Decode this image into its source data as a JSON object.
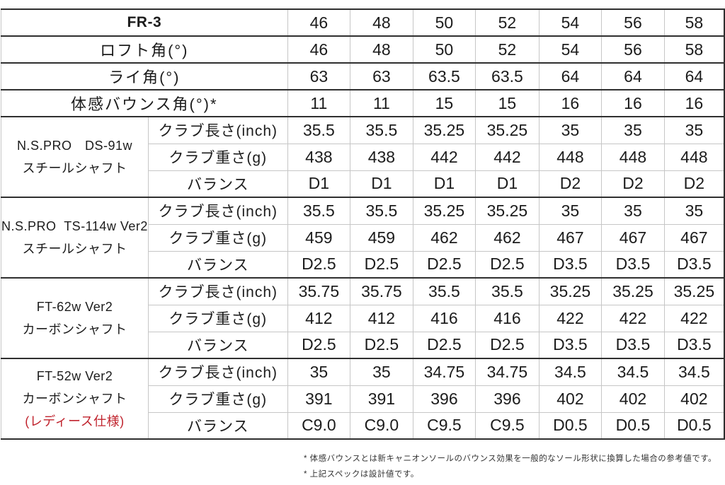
{
  "colors": {
    "text": "#1c1c1c",
    "accent_red": "#c0242e",
    "border_dark": "#2f2f2f",
    "border_light": "#c6c6c6"
  },
  "table": {
    "model_label": "FR-3",
    "header_values": [
      "46",
      "48",
      "50",
      "52",
      "54",
      "56",
      "58"
    ],
    "angle_rows": [
      {
        "label": "ロフト角(°)",
        "values": [
          "46",
          "48",
          "50",
          "52",
          "54",
          "56",
          "58"
        ]
      },
      {
        "label": "ライ角(°)",
        "values": [
          "63",
          "63",
          "63.5",
          "63.5",
          "64",
          "64",
          "64"
        ]
      },
      {
        "label": "体感バウンス角(°)*",
        "values": [
          "11",
          "11",
          "15",
          "15",
          "16",
          "16",
          "16"
        ]
      }
    ],
    "spec_row_labels": [
      "クラブ長さ(inch)",
      "クラブ重さ(g)",
      "バランス"
    ],
    "shaft_sections": [
      {
        "name_lines": [
          {
            "text": "N.S.PRO　DS-91w",
            "red": false
          },
          {
            "text": "スチールシャフト",
            "red": false
          }
        ],
        "rows": [
          [
            "35.5",
            "35.5",
            "35.25",
            "35.25",
            "35",
            "35",
            "35"
          ],
          [
            "438",
            "438",
            "442",
            "442",
            "448",
            "448",
            "448"
          ],
          [
            "D1",
            "D1",
            "D1",
            "D1",
            "D2",
            "D2",
            "D2"
          ]
        ]
      },
      {
        "name_lines": [
          {
            "text": "N.S.PRO  TS-114w Ver2",
            "red": false
          },
          {
            "text": "スチールシャフト",
            "red": false
          }
        ],
        "rows": [
          [
            "35.5",
            "35.5",
            "35.25",
            "35.25",
            "35",
            "35",
            "35"
          ],
          [
            "459",
            "459",
            "462",
            "462",
            "467",
            "467",
            "467"
          ],
          [
            "D2.5",
            "D2.5",
            "D2.5",
            "D2.5",
            "D3.5",
            "D3.5",
            "D3.5"
          ]
        ]
      },
      {
        "name_lines": [
          {
            "text": "FT-62w Ver2",
            "red": false
          },
          {
            "text": "カーボンシャフト",
            "red": false
          }
        ],
        "rows": [
          [
            "35.75",
            "35.75",
            "35.5",
            "35.5",
            "35.25",
            "35.25",
            "35.25"
          ],
          [
            "412",
            "412",
            "416",
            "416",
            "422",
            "422",
            "422"
          ],
          [
            "D2.5",
            "D2.5",
            "D2.5",
            "D2.5",
            "D3.5",
            "D3.5",
            "D3.5"
          ]
        ]
      },
      {
        "name_lines": [
          {
            "text": "FT-52w Ver2",
            "red": false
          },
          {
            "text": "カーボンシャフト",
            "red": false
          },
          {
            "text": "(レディース仕様)",
            "red": true
          }
        ],
        "rows": [
          [
            "35",
            "35",
            "34.75",
            "34.75",
            "34.5",
            "34.5",
            "34.5"
          ],
          [
            "391",
            "391",
            "396",
            "396",
            "402",
            "402",
            "402"
          ],
          [
            "C9.0",
            "C9.0",
            "C9.5",
            "C9.5",
            "D0.5",
            "D0.5",
            "D0.5"
          ]
        ]
      }
    ],
    "notes": [
      "* 体感バウンスとは新キャニオンソールのバウンス効果を一般的なソール形状に換算した場合の参考値です。",
      "* 上記スペックは設計値です。"
    ]
  }
}
